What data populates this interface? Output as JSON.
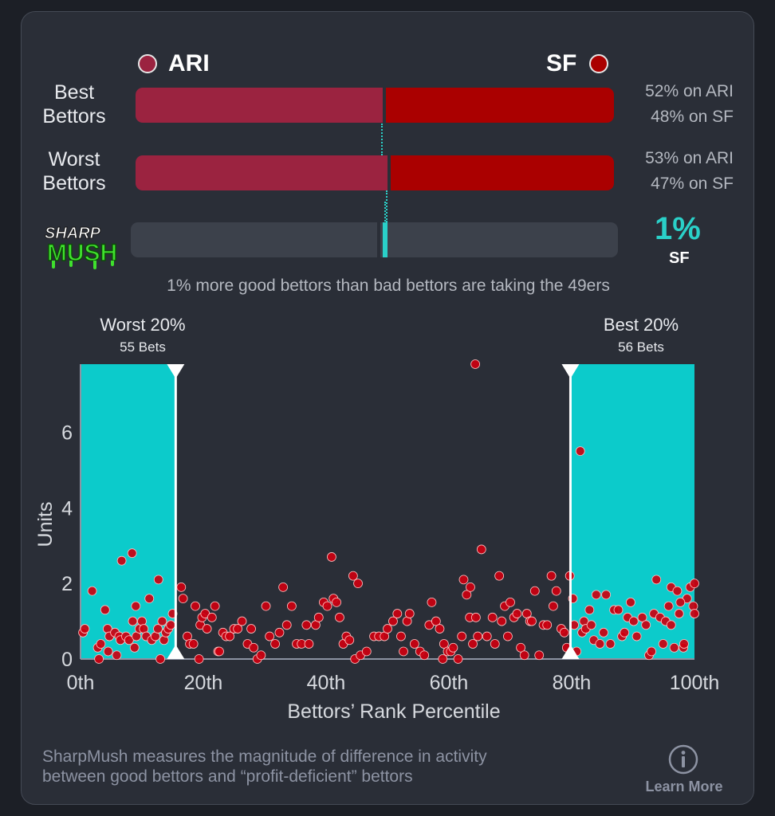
{
  "teams": {
    "left": {
      "abbr": "ARI",
      "color": "#9b2340"
    },
    "right": {
      "abbr": "SF",
      "color": "#aa0000"
    }
  },
  "rows": [
    {
      "label_line1": "Best",
      "label_line2": "Bettors",
      "left_share": 52,
      "right_share": 48,
      "left_text": "52% on ARI",
      "right_text": "48% on SF"
    },
    {
      "label_line1": "Worst",
      "label_line2": "Bettors",
      "left_share": 53,
      "right_share": 47,
      "left_text": "53% on ARI",
      "right_text": "47% on SF"
    }
  ],
  "sharpmush": {
    "logo_top": "SHARP",
    "logo_bottom": "MUSH",
    "value": 1,
    "value_text": "1%",
    "team": "SF",
    "caption": "1% more good bettors than bad bettors are taking the 49ers"
  },
  "chart_data": {
    "type": "scatter",
    "xlabel": "Bettors’ Rank Percentile",
    "ylabel": "Units",
    "xlim": [
      0,
      100
    ],
    "ylim": [
      0,
      7.8
    ],
    "x_ticks": [
      0,
      20,
      40,
      60,
      80,
      100
    ],
    "x_tick_labels": [
      "0th",
      "20th",
      "40th",
      "60th",
      "80th",
      "100th"
    ],
    "y_ticks": [
      0,
      2,
      4,
      6
    ],
    "y_tick_labels": [
      "0",
      "2",
      "4",
      "6"
    ],
    "grid": false,
    "point_color": "#cc0010",
    "highlight_color": "#0ccbcb",
    "regions": [
      {
        "label": "Worst 20%",
        "sublabel": "55 Bets",
        "x_start": 0,
        "x_end": 15.5
      },
      {
        "label": "Best 20%",
        "sublabel": "56 Bets",
        "x_start": 79.8,
        "x_end": 100
      }
    ],
    "points": [
      [
        0.4,
        0.7
      ],
      [
        0.7,
        0.8
      ],
      [
        1.9,
        1.8
      ],
      [
        2.8,
        0.3
      ],
      [
        3,
        0
      ],
      [
        3.3,
        0.4
      ],
      [
        4,
        1.3
      ],
      [
        4.4,
        0.8
      ],
      [
        4.5,
        0.2
      ],
      [
        4.7,
        0.6
      ],
      [
        5.6,
        0.7
      ],
      [
        5.9,
        0.1
      ],
      [
        6.3,
        0.6
      ],
      [
        6.5,
        0.5
      ],
      [
        6.7,
        2.6
      ],
      [
        7.4,
        0.6
      ],
      [
        7.9,
        0.5
      ],
      [
        8.5,
        1
      ],
      [
        8.8,
        0.3
      ],
      [
        9,
        1.4
      ],
      [
        9.1,
        0.6
      ],
      [
        9.6,
        0.8
      ],
      [
        10,
        1
      ],
      [
        10.3,
        0.8
      ],
      [
        10.7,
        0.6
      ],
      [
        11.2,
        1.6
      ],
      [
        11.6,
        0.5
      ],
      [
        12.2,
        0.6
      ],
      [
        12.6,
        0.8
      ],
      [
        13,
        0
      ],
      [
        13.3,
        1
      ],
      [
        13.6,
        0.5
      ],
      [
        13.9,
        0.7
      ],
      [
        14.3,
        0.8
      ],
      [
        14.7,
        0.9
      ],
      [
        15,
        1.2
      ],
      [
        8.4,
        2.8
      ],
      [
        12.7,
        2.1
      ],
      [
        16.4,
        1.9
      ],
      [
        16.7,
        1.6
      ],
      [
        17.4,
        0.6
      ],
      [
        17.8,
        0.4
      ],
      [
        18.4,
        0.4
      ],
      [
        18.7,
        1.4
      ],
      [
        19.3,
        0
      ],
      [
        19.5,
        0.9
      ],
      [
        19.8,
        1.1
      ],
      [
        20.3,
        1.2
      ],
      [
        20.6,
        0.8
      ],
      [
        21.4,
        1.1
      ],
      [
        21.9,
        1.4
      ],
      [
        22.4,
        0.2
      ],
      [
        22.6,
        0.2
      ],
      [
        23.2,
        0.7
      ],
      [
        23.7,
        0.6
      ],
      [
        24.3,
        0.6
      ],
      [
        25,
        0.8
      ],
      [
        25.6,
        0.8
      ],
      [
        26.3,
        1
      ],
      [
        27.2,
        0.4
      ],
      [
        27.8,
        0.8
      ],
      [
        28.2,
        0.3
      ],
      [
        28.8,
        0
      ],
      [
        29.4,
        0.1
      ],
      [
        30.2,
        1.4
      ],
      [
        30.8,
        0.6
      ],
      [
        31.7,
        0.4
      ],
      [
        32.4,
        0.7
      ],
      [
        33,
        1.9
      ],
      [
        33.6,
        0.9
      ],
      [
        34.4,
        1.4
      ],
      [
        35.2,
        0.4
      ],
      [
        36,
        0.4
      ],
      [
        36.8,
        0.9
      ],
      [
        37.2,
        0.4
      ],
      [
        38.3,
        0.9
      ],
      [
        38.8,
        1.1
      ],
      [
        39.6,
        1.5
      ],
      [
        40.2,
        1.4
      ],
      [
        40.9,
        2.7
      ],
      [
        41.2,
        1.6
      ],
      [
        41.7,
        1.5
      ],
      [
        42.2,
        1.1
      ],
      [
        42.8,
        0.4
      ],
      [
        43.3,
        0.6
      ],
      [
        43.8,
        0.5
      ],
      [
        44.4,
        2.2
      ],
      [
        44.7,
        0
      ],
      [
        45.2,
        2
      ],
      [
        45.6,
        0.1
      ],
      [
        46.6,
        0.2
      ],
      [
        47.8,
        0.6
      ],
      [
        48.6,
        0.6
      ],
      [
        49.5,
        0.6
      ],
      [
        50,
        0.8
      ],
      [
        50.9,
        1
      ],
      [
        51.6,
        1.2
      ],
      [
        52.2,
        0.6
      ],
      [
        52.6,
        0.2
      ],
      [
        53.2,
        1
      ],
      [
        53.6,
        1.2
      ],
      [
        54.4,
        0.4
      ],
      [
        55.3,
        0.2
      ],
      [
        56,
        0.1
      ],
      [
        56.8,
        0.9
      ],
      [
        57.2,
        1.5
      ],
      [
        57.9,
        1
      ],
      [
        58.5,
        0.8
      ],
      [
        59,
        0
      ],
      [
        59.2,
        0.4
      ],
      [
        59.8,
        0.2
      ],
      [
        60.3,
        0.2
      ],
      [
        60.7,
        0.3
      ],
      [
        61.5,
        0
      ],
      [
        62.1,
        0.6
      ],
      [
        62.9,
        1.7
      ],
      [
        63.4,
        1.1
      ],
      [
        63.9,
        0.4
      ],
      [
        64.4,
        1.1
      ],
      [
        64.7,
        0.6
      ],
      [
        65.3,
        2.9
      ],
      [
        66.2,
        0.6
      ],
      [
        67.1,
        1.1
      ],
      [
        67.5,
        0.4
      ],
      [
        68.2,
        2.2
      ],
      [
        68.6,
        1
      ],
      [
        69.1,
        1.4
      ],
      [
        69.6,
        0.6
      ],
      [
        70,
        1.5
      ],
      [
        70.6,
        1.1
      ],
      [
        71.1,
        1.2
      ],
      [
        71.7,
        0.3
      ],
      [
        72.3,
        0.1
      ],
      [
        72.7,
        1.2
      ],
      [
        73.2,
        1
      ],
      [
        73.5,
        1
      ],
      [
        74,
        1.8
      ],
      [
        74.7,
        0.1
      ],
      [
        75.4,
        0.9
      ],
      [
        76,
        0.9
      ],
      [
        76.7,
        2.2
      ],
      [
        77,
        1.4
      ],
      [
        77.5,
        1.8
      ],
      [
        78.3,
        0.8
      ],
      [
        78.8,
        0.7
      ],
      [
        79.2,
        0.3
      ],
      [
        79.7,
        2.2
      ],
      [
        80.2,
        1.6
      ],
      [
        80.4,
        0.9
      ],
      [
        80.8,
        0.2
      ],
      [
        63.5,
        1.9
      ],
      [
        62.4,
        2.1
      ],
      [
        64.3,
        7.8
      ],
      [
        81.4,
        5.5
      ],
      [
        81.7,
        0.7
      ],
      [
        82,
        1
      ],
      [
        82.3,
        0.8
      ],
      [
        82.9,
        1.3
      ],
      [
        83.2,
        0.9
      ],
      [
        83.6,
        0.5
      ],
      [
        84,
        1.7
      ],
      [
        84.6,
        0.4
      ],
      [
        85.2,
        0.7
      ],
      [
        85.6,
        1.7
      ],
      [
        86.3,
        0.4
      ],
      [
        86.9,
        1.3
      ],
      [
        87.6,
        1.3
      ],
      [
        88.2,
        0.6
      ],
      [
        88.6,
        0.7
      ],
      [
        89.1,
        1.1
      ],
      [
        89.6,
        1.5
      ],
      [
        90.1,
        1
      ],
      [
        90.6,
        0.6
      ],
      [
        91.5,
        1.1
      ],
      [
        92.1,
        0.9
      ],
      [
        92.6,
        0.1
      ],
      [
        93,
        0.2
      ],
      [
        93.4,
        1.2
      ],
      [
        93.8,
        2.1
      ],
      [
        94.4,
        1.1
      ],
      [
        94.9,
        0.4
      ],
      [
        95.3,
        1
      ],
      [
        95.8,
        1.4
      ],
      [
        96.2,
        1.9
      ],
      [
        96.7,
        0.3
      ],
      [
        97.2,
        1.8
      ],
      [
        97.5,
        1.2
      ],
      [
        98.2,
        0.3
      ],
      [
        98.8,
        1.6
      ],
      [
        99.3,
        1.9
      ],
      [
        99.8,
        1.4
      ],
      [
        100,
        1.2
      ],
      [
        100,
        2
      ],
      [
        98.3,
        0.4
      ],
      [
        97.7,
        1.5
      ],
      [
        96.2,
        0.9
      ]
    ]
  },
  "footer": {
    "line1": "SharpMush measures the magnitude of difference in activity",
    "line2": "between good bettors and “profit-deficient” bettors",
    "learn_more": "Learn More",
    "info_icon": "info-icon"
  }
}
